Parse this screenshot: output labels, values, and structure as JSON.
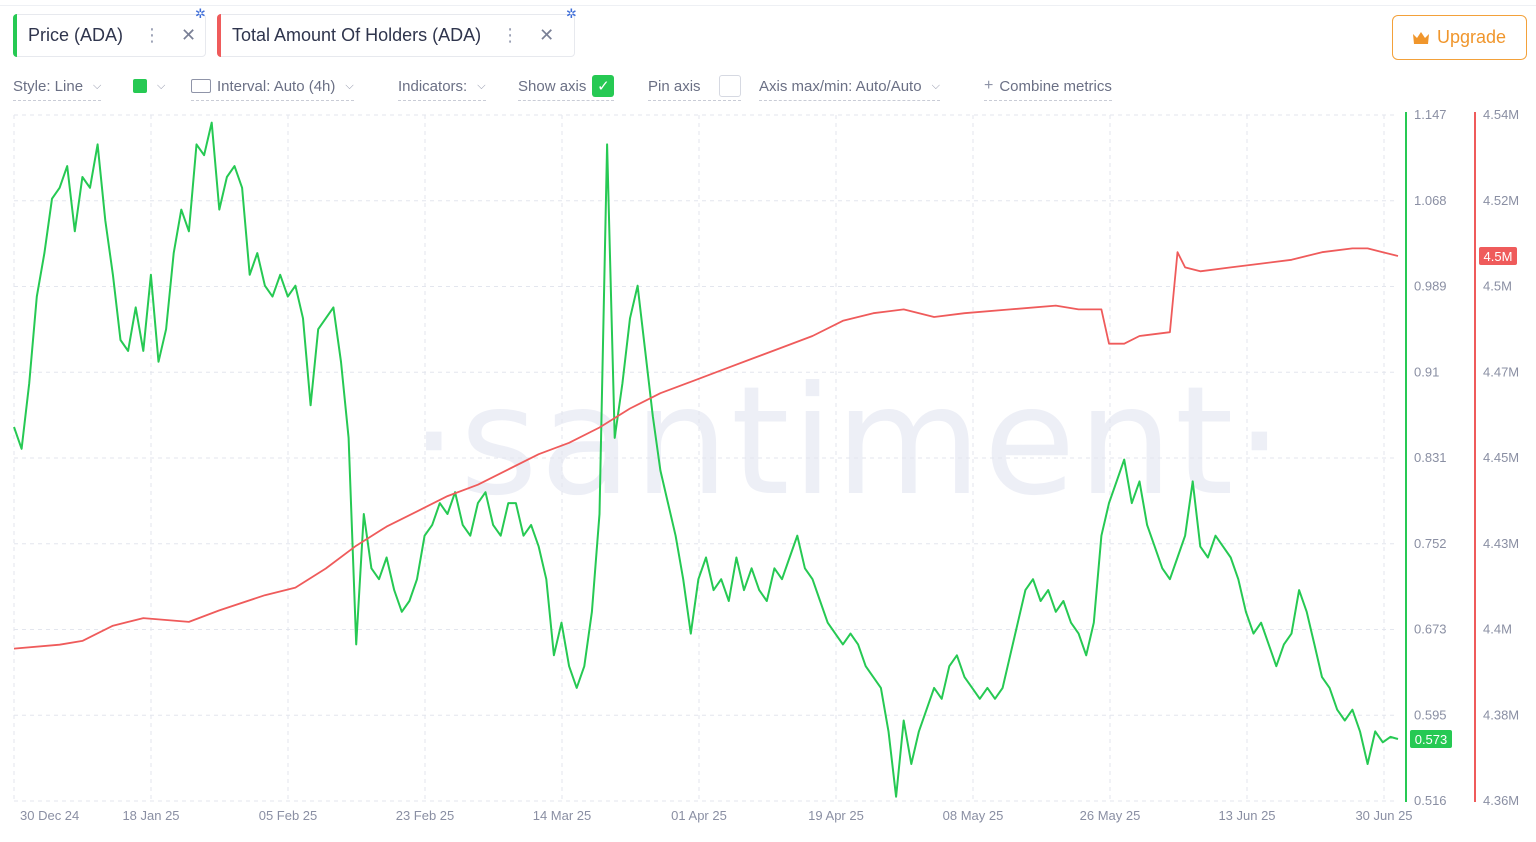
{
  "metrics": [
    {
      "label": "Price (ADA)",
      "color": "#26c953"
    },
    {
      "label": "Total Amount Of Holders (ADA)",
      "color": "#ef5b5b"
    }
  ],
  "upgrade_label": "Upgrade",
  "toolbar": {
    "style_label": "Style: Line",
    "interval_label": "Interval: Auto (4h)",
    "indicators_label": "Indicators:",
    "show_axis_label": "Show axis",
    "pin_axis_label": "Pin axis",
    "axis_maxmin_label": "Axis max/min: Auto/Auto",
    "combine_label": "Combine metrics"
  },
  "watermark": "·santiment·",
  "chart_data": {
    "type": "line",
    "x_ticks": [
      "30 Dec 24",
      "18 Jan 25",
      "05 Feb 25",
      "23 Feb 25",
      "14 Mar 25",
      "01 Apr 25",
      "19 Apr 25",
      "08 May 25",
      "26 May 25",
      "13 Jun 25",
      "30 Jun 25"
    ],
    "xlim": [
      "2024-12-30",
      "2025-06-30"
    ],
    "axes": {
      "price": {
        "ticks": [
          "1.147",
          "1.068",
          "0.989",
          "0.91",
          "0.831",
          "0.752",
          "0.673",
          "0.595",
          "0.516"
        ],
        "ylim": [
          0.516,
          1.147
        ],
        "color": "#26c953"
      },
      "holders": {
        "ticks": [
          "4.54M",
          "4.52M",
          "4.5M",
          "4.47M",
          "4.45M",
          "4.43M",
          "4.4M",
          "4.38M",
          "4.36M"
        ],
        "ylim": [
          4.36,
          4.54
        ],
        "unit": "M",
        "color": "#ef5b5b"
      }
    },
    "grid": true,
    "series": [
      {
        "name": "Price (ADA)",
        "axis": "price",
        "color": "#26c953",
        "last_label": "0.573",
        "points": [
          [
            "2024-12-30",
            0.86
          ],
          [
            "2024-12-31",
            0.84
          ],
          [
            "2025-01-01",
            0.9
          ],
          [
            "2025-01-02",
            0.98
          ],
          [
            "2025-01-03",
            1.02
          ],
          [
            "2025-01-04",
            1.07
          ],
          [
            "2025-01-05",
            1.08
          ],
          [
            "2025-01-06",
            1.1
          ],
          [
            "2025-01-07",
            1.04
          ],
          [
            "2025-01-08",
            1.09
          ],
          [
            "2025-01-09",
            1.08
          ],
          [
            "2025-01-10",
            1.12
          ],
          [
            "2025-01-11",
            1.05
          ],
          [
            "2025-01-12",
            1.0
          ],
          [
            "2025-01-13",
            0.94
          ],
          [
            "2025-01-14",
            0.93
          ],
          [
            "2025-01-15",
            0.97
          ],
          [
            "2025-01-16",
            0.93
          ],
          [
            "2025-01-17",
            1.0
          ],
          [
            "2025-01-18",
            0.92
          ],
          [
            "2025-01-19",
            0.95
          ],
          [
            "2025-01-20",
            1.02
          ],
          [
            "2025-01-21",
            1.06
          ],
          [
            "2025-01-22",
            1.04
          ],
          [
            "2025-01-23",
            1.12
          ],
          [
            "2025-01-24",
            1.11
          ],
          [
            "2025-01-25",
            1.14
          ],
          [
            "2025-01-26",
            1.06
          ],
          [
            "2025-01-27",
            1.09
          ],
          [
            "2025-01-28",
            1.1
          ],
          [
            "2025-01-29",
            1.08
          ],
          [
            "2025-01-30",
            1.0
          ],
          [
            "2025-01-31",
            1.02
          ],
          [
            "2025-02-01",
            0.99
          ],
          [
            "2025-02-02",
            0.98
          ],
          [
            "2025-02-03",
            1.0
          ],
          [
            "2025-02-04",
            0.98
          ],
          [
            "2025-02-05",
            0.99
          ],
          [
            "2025-02-06",
            0.96
          ],
          [
            "2025-02-07",
            0.88
          ],
          [
            "2025-02-08",
            0.95
          ],
          [
            "2025-02-09",
            0.96
          ],
          [
            "2025-02-10",
            0.97
          ],
          [
            "2025-02-11",
            0.92
          ],
          [
            "2025-02-12",
            0.85
          ],
          [
            "2025-02-13",
            0.66
          ],
          [
            "2025-02-14",
            0.78
          ],
          [
            "2025-02-15",
            0.73
          ],
          [
            "2025-02-16",
            0.72
          ],
          [
            "2025-02-17",
            0.74
          ],
          [
            "2025-02-18",
            0.71
          ],
          [
            "2025-02-19",
            0.69
          ],
          [
            "2025-02-20",
            0.7
          ],
          [
            "2025-02-21",
            0.72
          ],
          [
            "2025-02-22",
            0.76
          ],
          [
            "2025-02-23",
            0.77
          ],
          [
            "2025-02-24",
            0.79
          ],
          [
            "2025-02-25",
            0.78
          ],
          [
            "2025-02-26",
            0.8
          ],
          [
            "2025-02-27",
            0.77
          ],
          [
            "2025-02-28",
            0.76
          ],
          [
            "2025-03-01",
            0.79
          ],
          [
            "2025-03-02",
            0.8
          ],
          [
            "2025-03-03",
            0.77
          ],
          [
            "2025-03-04",
            0.76
          ],
          [
            "2025-03-05",
            0.79
          ],
          [
            "2025-03-06",
            0.79
          ],
          [
            "2025-03-07",
            0.76
          ],
          [
            "2025-03-08",
            0.77
          ],
          [
            "2025-03-09",
            0.75
          ],
          [
            "2025-03-10",
            0.72
          ],
          [
            "2025-03-11",
            0.65
          ],
          [
            "2025-03-12",
            0.68
          ],
          [
            "2025-03-13",
            0.64
          ],
          [
            "2025-03-14",
            0.62
          ],
          [
            "2025-03-15",
            0.64
          ],
          [
            "2025-03-16",
            0.69
          ],
          [
            "2025-03-17",
            0.78
          ],
          [
            "2025-03-18",
            1.12
          ],
          [
            "2025-03-19",
            0.85
          ],
          [
            "2025-03-20",
            0.9
          ],
          [
            "2025-03-21",
            0.96
          ],
          [
            "2025-03-22",
            0.99
          ],
          [
            "2025-03-23",
            0.93
          ],
          [
            "2025-03-24",
            0.87
          ],
          [
            "2025-03-25",
            0.82
          ],
          [
            "2025-03-26",
            0.79
          ],
          [
            "2025-03-27",
            0.76
          ],
          [
            "2025-03-28",
            0.72
          ],
          [
            "2025-03-29",
            0.67
          ],
          [
            "2025-03-30",
            0.72
          ],
          [
            "2025-03-31",
            0.74
          ],
          [
            "2025-04-01",
            0.71
          ],
          [
            "2025-04-02",
            0.72
          ],
          [
            "2025-04-03",
            0.7
          ],
          [
            "2025-04-04",
            0.74
          ],
          [
            "2025-04-05",
            0.71
          ],
          [
            "2025-04-06",
            0.73
          ],
          [
            "2025-04-07",
            0.71
          ],
          [
            "2025-04-08",
            0.7
          ],
          [
            "2025-04-09",
            0.73
          ],
          [
            "2025-04-10",
            0.72
          ],
          [
            "2025-04-11",
            0.74
          ],
          [
            "2025-04-12",
            0.76
          ],
          [
            "2025-04-13",
            0.73
          ],
          [
            "2025-04-14",
            0.72
          ],
          [
            "2025-04-15",
            0.7
          ],
          [
            "2025-04-16",
            0.68
          ],
          [
            "2025-04-17",
            0.67
          ],
          [
            "2025-04-18",
            0.66
          ],
          [
            "2025-04-19",
            0.67
          ],
          [
            "2025-04-20",
            0.66
          ],
          [
            "2025-04-21",
            0.64
          ],
          [
            "2025-04-22",
            0.63
          ],
          [
            "2025-04-23",
            0.62
          ],
          [
            "2025-04-24",
            0.58
          ],
          [
            "2025-04-25",
            0.52
          ],
          [
            "2025-04-26",
            0.59
          ],
          [
            "2025-04-27",
            0.55
          ],
          [
            "2025-04-28",
            0.58
          ],
          [
            "2025-04-29",
            0.6
          ],
          [
            "2025-04-30",
            0.62
          ],
          [
            "2025-05-01",
            0.61
          ],
          [
            "2025-05-02",
            0.64
          ],
          [
            "2025-05-03",
            0.65
          ],
          [
            "2025-05-04",
            0.63
          ],
          [
            "2025-05-05",
            0.62
          ],
          [
            "2025-05-06",
            0.61
          ],
          [
            "2025-05-07",
            0.62
          ],
          [
            "2025-05-08",
            0.61
          ],
          [
            "2025-05-09",
            0.62
          ],
          [
            "2025-05-10",
            0.65
          ],
          [
            "2025-05-11",
            0.68
          ],
          [
            "2025-05-12",
            0.71
          ],
          [
            "2025-05-13",
            0.72
          ],
          [
            "2025-05-14",
            0.7
          ],
          [
            "2025-05-15",
            0.71
          ],
          [
            "2025-05-16",
            0.69
          ],
          [
            "2025-05-17",
            0.7
          ],
          [
            "2025-05-18",
            0.68
          ],
          [
            "2025-05-19",
            0.67
          ],
          [
            "2025-05-20",
            0.65
          ],
          [
            "2025-05-21",
            0.68
          ],
          [
            "2025-05-22",
            0.76
          ],
          [
            "2025-05-23",
            0.79
          ],
          [
            "2025-05-24",
            0.81
          ],
          [
            "2025-05-25",
            0.83
          ],
          [
            "2025-05-26",
            0.79
          ],
          [
            "2025-05-27",
            0.81
          ],
          [
            "2025-05-28",
            0.77
          ],
          [
            "2025-05-29",
            0.75
          ],
          [
            "2025-05-30",
            0.73
          ],
          [
            "2025-05-31",
            0.72
          ],
          [
            "2025-06-01",
            0.74
          ],
          [
            "2025-06-02",
            0.76
          ],
          [
            "2025-06-03",
            0.81
          ],
          [
            "2025-06-04",
            0.75
          ],
          [
            "2025-06-05",
            0.74
          ],
          [
            "2025-06-06",
            0.76
          ],
          [
            "2025-06-07",
            0.75
          ],
          [
            "2025-06-08",
            0.74
          ],
          [
            "2025-06-09",
            0.72
          ],
          [
            "2025-06-10",
            0.69
          ],
          [
            "2025-06-11",
            0.67
          ],
          [
            "2025-06-12",
            0.68
          ],
          [
            "2025-06-13",
            0.66
          ],
          [
            "2025-06-14",
            0.64
          ],
          [
            "2025-06-15",
            0.66
          ],
          [
            "2025-06-16",
            0.67
          ],
          [
            "2025-06-17",
            0.71
          ],
          [
            "2025-06-18",
            0.69
          ],
          [
            "2025-06-19",
            0.66
          ],
          [
            "2025-06-20",
            0.63
          ],
          [
            "2025-06-21",
            0.62
          ],
          [
            "2025-06-22",
            0.6
          ],
          [
            "2025-06-23",
            0.59
          ],
          [
            "2025-06-24",
            0.6
          ],
          [
            "2025-06-25",
            0.58
          ],
          [
            "2025-06-26",
            0.55
          ],
          [
            "2025-06-27",
            0.58
          ],
          [
            "2025-06-28",
            0.57
          ],
          [
            "2025-06-29",
            0.575
          ],
          [
            "2025-06-30",
            0.573
          ]
        ]
      },
      {
        "name": "Total Amount Of Holders (ADA)",
        "axis": "holders",
        "color": "#ef5b5b",
        "last_label": "4.5M",
        "points": [
          [
            "2024-12-30",
            4.4
          ],
          [
            "2025-01-05",
            4.401
          ],
          [
            "2025-01-08",
            4.402
          ],
          [
            "2025-01-12",
            4.406
          ],
          [
            "2025-01-16",
            4.408
          ],
          [
            "2025-01-22",
            4.407
          ],
          [
            "2025-01-26",
            4.41
          ],
          [
            "2025-02-01",
            4.414
          ],
          [
            "2025-02-05",
            4.416
          ],
          [
            "2025-02-09",
            4.421
          ],
          [
            "2025-02-13",
            4.427
          ],
          [
            "2025-02-17",
            4.432
          ],
          [
            "2025-02-21",
            4.436
          ],
          [
            "2025-02-25",
            4.44
          ],
          [
            "2025-03-01",
            4.443
          ],
          [
            "2025-03-05",
            4.447
          ],
          [
            "2025-03-09",
            4.451
          ],
          [
            "2025-03-13",
            4.454
          ],
          [
            "2025-03-17",
            4.458
          ],
          [
            "2025-03-21",
            4.463
          ],
          [
            "2025-03-25",
            4.467
          ],
          [
            "2025-03-29",
            4.47
          ],
          [
            "2025-04-02",
            4.473
          ],
          [
            "2025-04-06",
            4.476
          ],
          [
            "2025-04-10",
            4.479
          ],
          [
            "2025-04-14",
            4.482
          ],
          [
            "2025-04-18",
            4.486
          ],
          [
            "2025-04-22",
            4.488
          ],
          [
            "2025-04-26",
            4.489
          ],
          [
            "2025-04-30",
            4.487
          ],
          [
            "2025-05-04",
            4.488
          ],
          [
            "2025-05-10",
            4.489
          ],
          [
            "2025-05-16",
            4.49
          ],
          [
            "2025-05-19",
            4.489
          ],
          [
            "2025-05-22",
            4.489
          ],
          [
            "2025-05-23",
            4.48
          ],
          [
            "2025-05-25",
            4.48
          ],
          [
            "2025-05-27",
            4.482
          ],
          [
            "2025-05-31",
            4.483
          ],
          [
            "2025-06-01",
            4.504
          ],
          [
            "2025-06-02",
            4.5
          ],
          [
            "2025-06-04",
            4.499
          ],
          [
            "2025-06-08",
            4.5
          ],
          [
            "2025-06-12",
            4.501
          ],
          [
            "2025-06-16",
            4.502
          ],
          [
            "2025-06-20",
            4.504
          ],
          [
            "2025-06-24",
            4.505
          ],
          [
            "2025-06-26",
            4.505
          ],
          [
            "2025-06-28",
            4.504
          ],
          [
            "2025-06-30",
            4.503
          ]
        ]
      }
    ]
  }
}
